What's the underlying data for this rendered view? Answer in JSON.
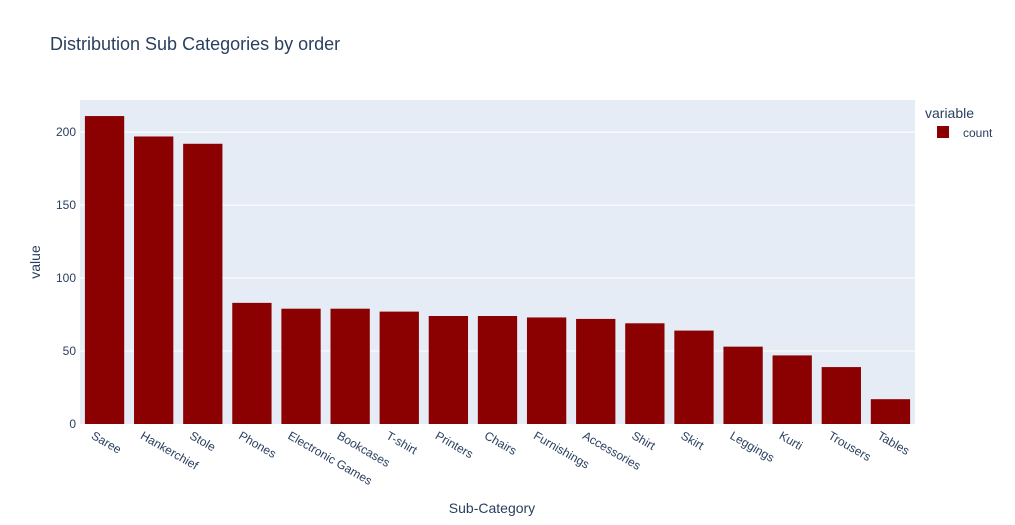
{
  "chart_data": {
    "type": "bar",
    "title": "Distribution Sub Categories by order",
    "xlabel": "Sub-Category",
    "ylabel": "value",
    "ylim": [
      0,
      222
    ],
    "yticks": [
      0,
      50,
      100,
      150,
      200
    ],
    "grid": true,
    "legend": {
      "title": "variable",
      "placement": "top-right"
    },
    "categories": [
      "Saree",
      "Hankerchief",
      "Stole",
      "Phones",
      "Electronic Games",
      "Bookcases",
      "T-shirt",
      "Printers",
      "Chairs",
      "Furnishings",
      "Accessories",
      "Shirt",
      "Skirt",
      "Leggings",
      "Kurti",
      "Trousers",
      "Tables"
    ],
    "series": [
      {
        "name": "count",
        "color": "#8b0000",
        "values": [
          211,
          197,
          192,
          83,
          79,
          79,
          77,
          74,
          74,
          73,
          72,
          69,
          64,
          53,
          47,
          39,
          17
        ]
      }
    ]
  }
}
